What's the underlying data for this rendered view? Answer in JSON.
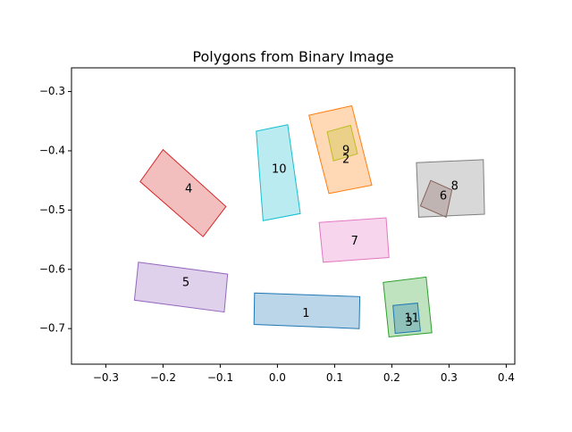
{
  "chart_data": {
    "type": "polygon",
    "title": "Polygons from Binary Image",
    "xlabel": "",
    "ylabel": "",
    "xlim": [
      -0.36,
      0.415
    ],
    "ylim": [
      -0.76,
      -0.26
    ],
    "grid": false,
    "legend": false,
    "x_ticks": [
      -0.3,
      -0.2,
      -0.1,
      0.0,
      0.1,
      0.2,
      0.3,
      0.4
    ],
    "x_tick_labels": [
      "−0.3",
      "−0.2",
      "−0.1",
      "0.0",
      "0.1",
      "0.2",
      "0.3",
      "0.4"
    ],
    "y_ticks": [
      -0.3,
      -0.4,
      -0.5,
      -0.6,
      -0.7
    ],
    "y_tick_labels": [
      "−0.3",
      "−0.4",
      "−0.5",
      "−0.6",
      "−0.7"
    ],
    "polygons": [
      {
        "label": "1",
        "color": "#1f77b4",
        "label_at": [
          0.05,
          -0.675
        ],
        "points": [
          [
            -0.04,
            -0.64
          ],
          [
            0.144,
            -0.646
          ],
          [
            0.143,
            -0.7
          ],
          [
            -0.041,
            -0.693
          ]
        ]
      },
      {
        "label": "2",
        "color": "#ff7f0e",
        "label_at": [
          0.12,
          -0.415
        ],
        "points": [
          [
            0.055,
            -0.34
          ],
          [
            0.13,
            -0.324
          ],
          [
            0.165,
            -0.458
          ],
          [
            0.09,
            -0.472
          ]
        ]
      },
      {
        "label": "3",
        "color": "#2ca02c",
        "label_at": [
          0.23,
          -0.69
        ],
        "points": [
          [
            0.185,
            -0.622
          ],
          [
            0.26,
            -0.613
          ],
          [
            0.27,
            -0.707
          ],
          [
            0.195,
            -0.714
          ]
        ]
      },
      {
        "label": "4",
        "color": "#d62728",
        "label_at": [
          -0.155,
          -0.465
        ],
        "points": [
          [
            -0.24,
            -0.452
          ],
          [
            -0.2,
            -0.398
          ],
          [
            -0.09,
            -0.494
          ],
          [
            -0.13,
            -0.545
          ]
        ]
      },
      {
        "label": "5",
        "color": "#9467bd",
        "label_at": [
          -0.16,
          -0.623
        ],
        "points": [
          [
            -0.243,
            -0.588
          ],
          [
            -0.087,
            -0.608
          ],
          [
            -0.093,
            -0.672
          ],
          [
            -0.25,
            -0.652
          ]
        ]
      },
      {
        "label": "6",
        "color": "#8c564b",
        "label_at": [
          0.29,
          -0.477
        ],
        "points": [
          [
            0.268,
            -0.45
          ],
          [
            0.305,
            -0.466
          ],
          [
            0.295,
            -0.512
          ],
          [
            0.25,
            -0.493
          ]
        ]
      },
      {
        "label": "7",
        "color": "#e377c2",
        "label_at": [
          0.135,
          -0.553
        ],
        "points": [
          [
            0.073,
            -0.521
          ],
          [
            0.19,
            -0.513
          ],
          [
            0.195,
            -0.58
          ],
          [
            0.08,
            -0.588
          ]
        ]
      },
      {
        "label": "8",
        "color": "#7f7f7f",
        "label_at": [
          0.31,
          -0.46
        ],
        "points": [
          [
            0.243,
            -0.42
          ],
          [
            0.36,
            -0.415
          ],
          [
            0.362,
            -0.507
          ],
          [
            0.247,
            -0.512
          ]
        ]
      },
      {
        "label": "9",
        "color": "#bcbd22",
        "label_at": [
          0.12,
          -0.4
        ],
        "points": [
          [
            0.087,
            -0.368
          ],
          [
            0.128,
            -0.357
          ],
          [
            0.14,
            -0.405
          ],
          [
            0.098,
            -0.417
          ]
        ]
      },
      {
        "label": "10",
        "color": "#17becf",
        "label_at": [
          0.003,
          -0.432
        ],
        "points": [
          [
            -0.037,
            -0.367
          ],
          [
            0.018,
            -0.356
          ],
          [
            0.04,
            -0.506
          ],
          [
            -0.025,
            -0.518
          ]
        ]
      },
      {
        "label": "11",
        "color": "#1f77b4",
        "label_at": [
          0.235,
          -0.683
        ],
        "points": [
          [
            0.202,
            -0.661
          ],
          [
            0.245,
            -0.657
          ],
          [
            0.25,
            -0.704
          ],
          [
            0.206,
            -0.708
          ]
        ]
      }
    ]
  }
}
